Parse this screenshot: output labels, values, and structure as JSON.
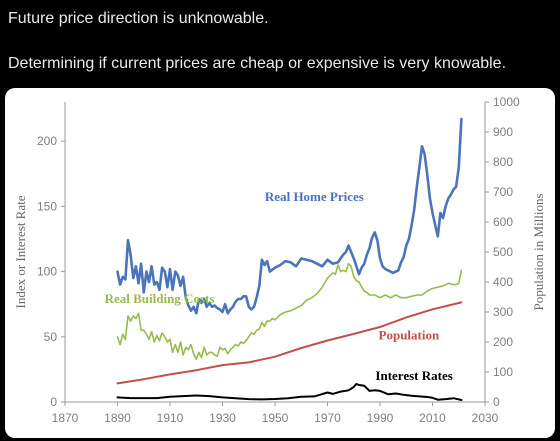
{
  "post": {
    "line1": "Future price direction is unknowable.",
    "line2": "Determining if current prices are cheap or expensive is very knowable."
  },
  "chart_data": {
    "type": "line",
    "ylabel_left": "Index or Interest Rate",
    "ylabel_right": "Population in Millions",
    "xlim": [
      1870,
      2030
    ],
    "ylim_left": [
      0,
      230
    ],
    "ylim_right": [
      0,
      1000
    ],
    "xticks": [
      1870,
      1890,
      1910,
      1930,
      1950,
      1970,
      1990,
      2010,
      2030
    ],
    "yticks_left": [
      0,
      50,
      100,
      150,
      200
    ],
    "yticks_right": [
      0,
      100,
      200,
      300,
      400,
      500,
      600,
      700,
      800,
      900,
      1000
    ],
    "grid": false,
    "legend": "none",
    "series": [
      {
        "name": "Real Home Prices",
        "axis": "left",
        "color": "#4a74bb",
        "x": [
          1890,
          1891,
          1892,
          1893,
          1894,
          1895,
          1896,
          1897,
          1898,
          1899,
          1900,
          1901,
          1902,
          1903,
          1904,
          1905,
          1906,
          1907,
          1908,
          1909,
          1910,
          1911,
          1912,
          1913,
          1914,
          1915,
          1916,
          1917,
          1918,
          1919,
          1920,
          1921,
          1922,
          1923,
          1924,
          1925,
          1926,
          1927,
          1928,
          1929,
          1930,
          1931,
          1932,
          1933,
          1934,
          1935,
          1936,
          1937,
          1938,
          1939,
          1940,
          1941,
          1942,
          1943,
          1944,
          1945,
          1946,
          1947,
          1948,
          1950,
          1952,
          1954,
          1956,
          1958,
          1960,
          1962,
          1964,
          1966,
          1968,
          1970,
          1972,
          1974,
          1975,
          1976,
          1977,
          1978,
          1979,
          1980,
          1981,
          1982,
          1983,
          1984,
          1985,
          1986,
          1987,
          1988,
          1989,
          1990,
          1991,
          1992,
          1993,
          1994,
          1995,
          1996,
          1997,
          1998,
          1999,
          2000,
          2001,
          2002,
          2003,
          2004,
          2005,
          2006,
          2007,
          2008,
          2009,
          2010,
          2011,
          2012,
          2013,
          2014,
          2015,
          2016,
          2017,
          2018,
          2019,
          2020,
          2021
        ],
        "values": [
          100,
          90,
          96,
          94,
          124,
          113,
          95,
          104,
          91,
          106,
          84,
          100,
          92,
          104,
          90,
          92,
          86,
          103,
          100,
          88,
          102,
          86,
          100,
          97,
          89,
          96,
          80,
          74,
          70,
          73,
          68,
          79,
          76,
          79,
          73,
          76,
          73,
          74,
          72,
          71,
          69,
          75,
          68,
          71,
          73,
          77,
          79,
          79,
          81,
          81,
          73,
          71,
          73,
          80,
          89,
          109,
          105,
          108,
          100,
          103,
          105,
          108,
          107,
          104,
          110,
          109,
          108,
          106,
          104,
          109,
          106,
          107,
          110,
          113,
          115,
          120,
          115,
          110,
          104,
          98,
          103,
          106,
          113,
          118,
          126,
          130,
          124,
          110,
          104,
          102,
          101,
          100,
          99,
          100,
          101,
          107,
          111,
          120,
          125,
          135,
          147,
          165,
          180,
          196,
          190,
          174,
          156,
          145,
          136,
          127,
          145,
          141,
          150,
          156,
          159,
          163,
          165,
          180,
          217
        ]
      },
      {
        "name": "Real Building Costs",
        "axis": "left",
        "color": "#97bb4c",
        "x": [
          1890,
          1891,
          1892,
          1893,
          1894,
          1895,
          1896,
          1897,
          1898,
          1899,
          1900,
          1901,
          1902,
          1903,
          1904,
          1905,
          1906,
          1907,
          1908,
          1909,
          1910,
          1911,
          1912,
          1913,
          1914,
          1915,
          1916,
          1917,
          1918,
          1919,
          1920,
          1921,
          1922,
          1923,
          1924,
          1925,
          1926,
          1927,
          1928,
          1929,
          1930,
          1931,
          1932,
          1933,
          1934,
          1935,
          1936,
          1937,
          1938,
          1939,
          1940,
          1941,
          1942,
          1943,
          1944,
          1945,
          1946,
          1947,
          1948,
          1949,
          1950,
          1952,
          1954,
          1956,
          1958,
          1960,
          1962,
          1964,
          1966,
          1968,
          1970,
          1972,
          1973,
          1974,
          1975,
          1976,
          1977,
          1978,
          1979,
          1980,
          1981,
          1982,
          1983,
          1984,
          1985,
          1986,
          1987,
          1988,
          1990,
          1992,
          1994,
          1996,
          1998,
          2000,
          2002,
          2004,
          2006,
          2008,
          2010,
          2012,
          2014,
          2016,
          2018,
          2019,
          2020,
          2021
        ],
        "values": [
          50,
          44,
          52,
          48,
          66,
          62,
          66,
          64,
          68,
          55,
          55,
          52,
          48,
          54,
          46,
          51,
          47,
          53,
          50,
          46,
          48,
          38,
          44,
          38,
          46,
          36,
          42,
          40,
          44,
          37,
          33,
          38,
          34,
          42,
          36,
          38,
          38,
          36,
          35,
          42,
          40,
          41,
          37,
          40,
          42,
          44,
          43,
          46,
          45,
          47,
          50,
          53,
          52,
          55,
          56,
          61,
          58,
          62,
          62,
          64,
          63,
          67,
          69,
          70,
          72,
          74,
          78,
          80,
          83,
          88,
          95,
          99,
          98,
          105,
          100,
          101,
          100,
          106,
          104,
          96,
          93,
          92,
          88,
          85,
          84,
          82,
          82,
          82,
          80,
          82,
          80,
          82,
          80,
          80,
          81,
          82,
          82,
          85,
          87,
          88,
          89,
          91,
          90,
          90,
          91,
          101
        ]
      },
      {
        "name": "Population",
        "axis": "right",
        "color": "#c0504d",
        "x": [
          1890,
          1900,
          1910,
          1920,
          1930,
          1940,
          1950,
          1960,
          1970,
          1980,
          1990,
          2000,
          2010,
          2021
        ],
        "values": [
          62,
          76,
          92,
          106,
          123,
          132,
          151,
          180,
          205,
          227,
          250,
          282,
          309,
          332
        ]
      },
      {
        "name": "Interest Rates",
        "axis": "left",
        "color": "#000000",
        "x": [
          1890,
          1895,
          1900,
          1905,
          1910,
          1915,
          1920,
          1925,
          1930,
          1935,
          1940,
          1945,
          1950,
          1955,
          1960,
          1965,
          1970,
          1972,
          1975,
          1978,
          1980,
          1981,
          1982,
          1984,
          1986,
          1988,
          1990,
          1993,
          1996,
          1999,
          2002,
          2005,
          2008,
          2010,
          2012,
          2015,
          2018,
          2021
        ],
        "values": [
          3.5,
          3,
          3,
          3,
          4,
          4.5,
          5,
          4.5,
          3.5,
          2.8,
          2.2,
          2,
          2.3,
          2.8,
          4,
          4.3,
          7.3,
          6.2,
          8,
          9,
          11.5,
          13.9,
          13,
          12.4,
          8.5,
          9,
          8.5,
          6,
          6.5,
          5.5,
          4.8,
          4.3,
          3.8,
          3.2,
          1.8,
          2.2,
          2.9,
          1.5
        ]
      }
    ],
    "annotations": [
      {
        "text": "Real Home Prices",
        "color": "#4a74bb",
        "x": 1965,
        "y": 154
      },
      {
        "text": "Real Building Costs",
        "color": "#97bb4c",
        "x": 1906,
        "y": 76
      },
      {
        "text": "Population",
        "color": "#c0504d",
        "x": 2001,
        "y": 48
      },
      {
        "text": "Interest Rates",
        "color": "#000000",
        "x": 2003,
        "y": 17
      }
    ]
  }
}
